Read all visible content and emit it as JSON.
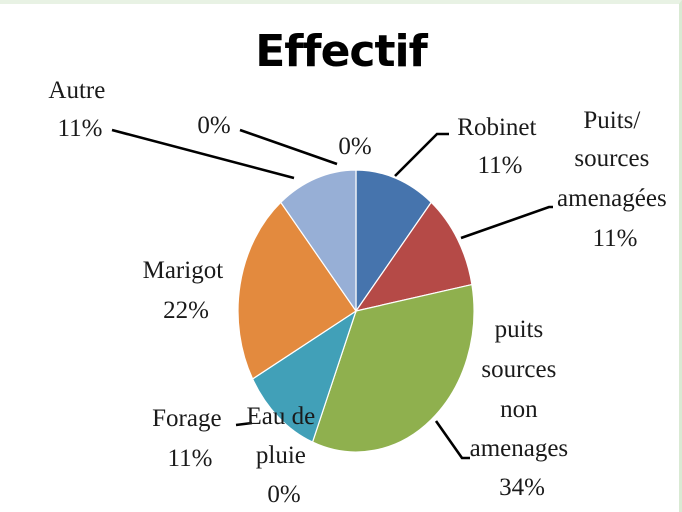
{
  "chart_data": {
    "type": "pie",
    "title": "Effectif",
    "slices": [
      {
        "label": "Robinet",
        "value": 11,
        "display": "11%",
        "color": "#4674ad"
      },
      {
        "label": "Puits/ sources amenagées",
        "value": 11,
        "display": "11%",
        "color": "#b54a47"
      },
      {
        "label": "puits sources non amenages",
        "value": 34,
        "display": "34%",
        "color": "#8fb04e"
      },
      {
        "label": "Eau de pluie",
        "value": 0,
        "display": "0%",
        "color": "#7a5d96"
      },
      {
        "label": "Forage",
        "value": 11,
        "display": "11%",
        "color": "#41a0b8"
      },
      {
        "label": "Marigot",
        "value": 22,
        "display": "22%",
        "color": "#e38a3e"
      },
      {
        "label": "Autre",
        "value": 11,
        "display": "11%",
        "color": "#97afd6"
      },
      {
        "label": "",
        "value": 0,
        "display": "0%",
        "color": "#b0c4e0"
      },
      {
        "label": "",
        "value": 0,
        "display": "0%",
        "color": "#c8d8ea"
      }
    ],
    "legend": "none",
    "label_lines": {
      "robinet": [
        "Robinet",
        "11%"
      ],
      "puits_amenagees": [
        "Puits/",
        "sources",
        "amenagées",
        "11%"
      ],
      "puits_non_amenages": [
        "puits",
        "sources",
        "non",
        "amenages",
        "34%"
      ],
      "eau_de_pluie": [
        "Eau de",
        "pluie",
        "0%"
      ],
      "forage": [
        "Forage",
        "11%"
      ],
      "marigot": [
        "Marigot",
        "22%"
      ],
      "autre": [
        "Autre",
        "11%"
      ],
      "zero_a": [
        "0%"
      ],
      "zero_b": [
        "0%"
      ]
    }
  }
}
